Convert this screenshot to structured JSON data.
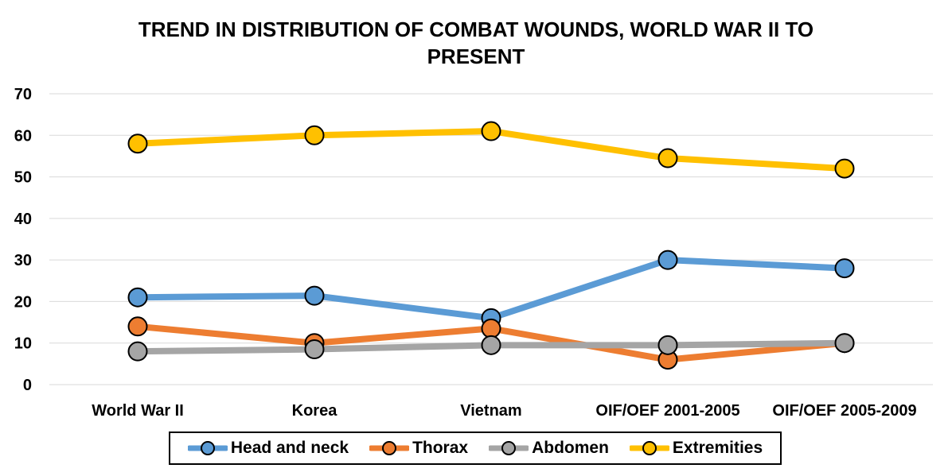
{
  "chart_data": {
    "type": "line",
    "title": "TREND IN DISTRIBUTION OF COMBAT WOUNDS, WORLD WAR II TO PRESENT",
    "categories": [
      "World War II",
      "Korea",
      "Vietnam",
      "OIF/OEF 2001-2005",
      "OIF/OEF 2005-2009"
    ],
    "ylim": [
      0,
      70
    ],
    "yticks": [
      0,
      10,
      20,
      30,
      40,
      50,
      60,
      70
    ],
    "grid": true,
    "legend": "bottom",
    "series": [
      {
        "name": "Head and neck",
        "color": "#5b9bd5",
        "values": [
          21,
          21.4,
          16,
          30,
          28
        ]
      },
      {
        "name": "Thorax",
        "color": "#ed7d31",
        "values": [
          14,
          10,
          13.5,
          6,
          10
        ]
      },
      {
        "name": "Abdomen",
        "color": "#a5a5a5",
        "values": [
          8,
          8.5,
          9.5,
          9.5,
          10
        ]
      },
      {
        "name": "Extremities",
        "color": "#ffc000",
        "values": [
          58,
          60,
          61,
          54.5,
          52
        ]
      }
    ]
  }
}
